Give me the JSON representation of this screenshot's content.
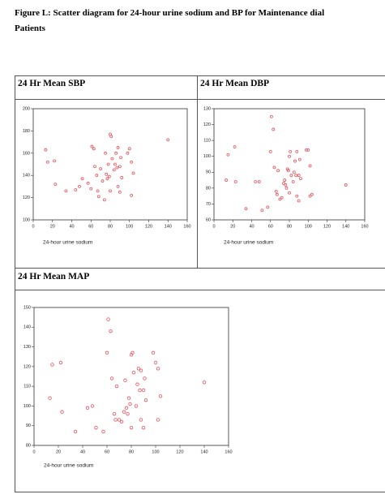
{
  "title_lines": [
    "Figure L: Scatter diagram for 24-hour urine sodium and BP for Maintenance dial",
    "Patients"
  ],
  "chart_data": [
    {
      "type": "scatter",
      "title": "24 Hr Mean SBP",
      "x_label": "24-hour urine sodium",
      "color": "#e8505a",
      "xlim": [
        0,
        160
      ],
      "xticks": [
        0,
        20,
        40,
        60,
        80,
        100,
        120,
        140,
        160
      ],
      "ylim": [
        100,
        200
      ],
      "yticks": [
        100,
        120,
        140,
        160,
        180,
        200
      ],
      "x": [
        13,
        15,
        22,
        23,
        34,
        44,
        48,
        51,
        57,
        60,
        61,
        63,
        64,
        66,
        67,
        68,
        70,
        72,
        74,
        75,
        76,
        77,
        78,
        79,
        80,
        80,
        81,
        82,
        84,
        85,
        86,
        87,
        88,
        88,
        90,
        90,
        91,
        92,
        98,
        100,
        102,
        102,
        104,
        140
      ],
      "y": [
        163,
        152,
        153,
        132,
        126,
        127,
        130,
        137,
        133,
        128,
        166,
        164,
        148,
        140,
        126,
        121,
        146,
        135,
        118,
        160,
        141,
        137,
        150,
        139,
        177,
        126,
        175,
        155,
        145,
        150,
        160,
        147,
        165,
        130,
        148,
        125,
        156,
        138,
        160,
        164,
        152,
        122,
        142,
        172
      ]
    },
    {
      "type": "scatter",
      "title": "24 Hr Mean DBP",
      "x_label": "24-hour urine sodium",
      "color": "#e8505a",
      "xlim": [
        0,
        160
      ],
      "xticks": [
        0,
        20,
        40,
        60,
        80,
        100,
        120,
        140,
        160
      ],
      "ylim": [
        60,
        130
      ],
      "yticks": [
        60,
        70,
        80,
        90,
        100,
        110,
        120,
        130
      ],
      "x": [
        13,
        15,
        22,
        23,
        34,
        44,
        48,
        51,
        57,
        60,
        61,
        63,
        64,
        66,
        67,
        68,
        70,
        72,
        74,
        75,
        76,
        77,
        78,
        79,
        80,
        80,
        81,
        82,
        84,
        85,
        86,
        87,
        88,
        88,
        90,
        90,
        91,
        92,
        98,
        100,
        102,
        102,
        104,
        140
      ],
      "y": [
        85,
        101,
        106,
        84,
        67,
        84,
        84,
        66,
        68,
        103,
        125,
        117,
        93,
        78,
        76,
        91,
        73,
        74,
        83,
        85,
        82,
        80,
        92,
        91,
        100,
        77,
        103,
        88,
        84,
        90,
        97,
        88,
        103,
        75,
        88,
        72,
        98,
        86,
        104,
        104,
        94,
        75,
        76,
        82
      ]
    },
    {
      "type": "scatter",
      "title": "24 Hr Mean MAP",
      "x_label": "24-hour urine sodium",
      "color": "#e8505a",
      "xlim": [
        0,
        160
      ],
      "xticks": [
        0,
        20,
        40,
        60,
        80,
        100,
        120,
        140,
        160
      ],
      "ylim": [
        80,
        150
      ],
      "yticks": [
        80,
        90,
        100,
        110,
        120,
        130,
        140,
        150
      ],
      "x": [
        13,
        15,
        22,
        23,
        34,
        44,
        48,
        51,
        57,
        60,
        61,
        63,
        64,
        66,
        67,
        68,
        70,
        72,
        74,
        75,
        76,
        77,
        78,
        79,
        80,
        80,
        81,
        82,
        84,
        85,
        86,
        87,
        88,
        88,
        90,
        90,
        91,
        92,
        98,
        100,
        102,
        102,
        104,
        140
      ],
      "y": [
        104,
        121,
        122,
        97,
        87,
        99,
        100,
        89,
        87,
        127,
        144,
        138,
        114,
        96,
        93,
        110,
        93,
        92,
        97,
        113,
        99,
        96,
        104,
        101,
        126,
        89,
        127,
        117,
        100,
        111,
        119,
        108,
        118,
        93,
        108,
        89,
        114,
        103,
        127,
        122,
        119,
        93,
        105,
        112
      ]
    }
  ]
}
